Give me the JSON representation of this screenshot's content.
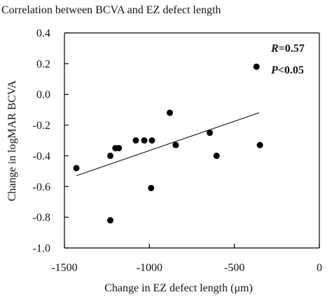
{
  "chart_data": {
    "type": "scatter",
    "title": "Correlation between BCVA and EZ defect length",
    "xlabel": "Change in EZ defect length (μm)",
    "ylabel": "Change in logMAR BCVA",
    "xlim": [
      -1500,
      0
    ],
    "ylim": [
      -1.0,
      0.4
    ],
    "x_ticks": [
      -1500,
      -1000,
      -500,
      0
    ],
    "x_tick_labels": [
      "-1500",
      "-1000",
      "-500",
      "0"
    ],
    "y_ticks": [
      0.4,
      0.2,
      0.0,
      -0.2,
      -0.4,
      -0.6,
      -0.8,
      -1.0
    ],
    "y_tick_labels": [
      "0.4",
      "0.2",
      "0.0",
      "-0.2",
      "-0.4",
      "-0.6",
      "-0.8",
      "-1.0"
    ],
    "grid": false,
    "points": [
      {
        "x": -1430,
        "y": -0.48
      },
      {
        "x": -1230,
        "y": -0.4
      },
      {
        "x": -1200,
        "y": -0.35
      },
      {
        "x": -1180,
        "y": -0.35
      },
      {
        "x": -1230,
        "y": -0.82
      },
      {
        "x": -1080,
        "y": -0.3
      },
      {
        "x": -1030,
        "y": -0.3
      },
      {
        "x": -985,
        "y": -0.3
      },
      {
        "x": -990,
        "y": -0.61
      },
      {
        "x": -880,
        "y": -0.12
      },
      {
        "x": -845,
        "y": -0.33
      },
      {
        "x": -645,
        "y": -0.25
      },
      {
        "x": -605,
        "y": -0.4
      },
      {
        "x": -370,
        "y": 0.18
      },
      {
        "x": -350,
        "y": -0.33
      }
    ],
    "trendline": {
      "x1": -1430,
      "y1": -0.53,
      "x2": -355,
      "y2": -0.12
    },
    "annotations": {
      "r_symbol": "R",
      "r_value": "=0.57",
      "p_symbol": "P",
      "p_value": "<0.05"
    }
  }
}
